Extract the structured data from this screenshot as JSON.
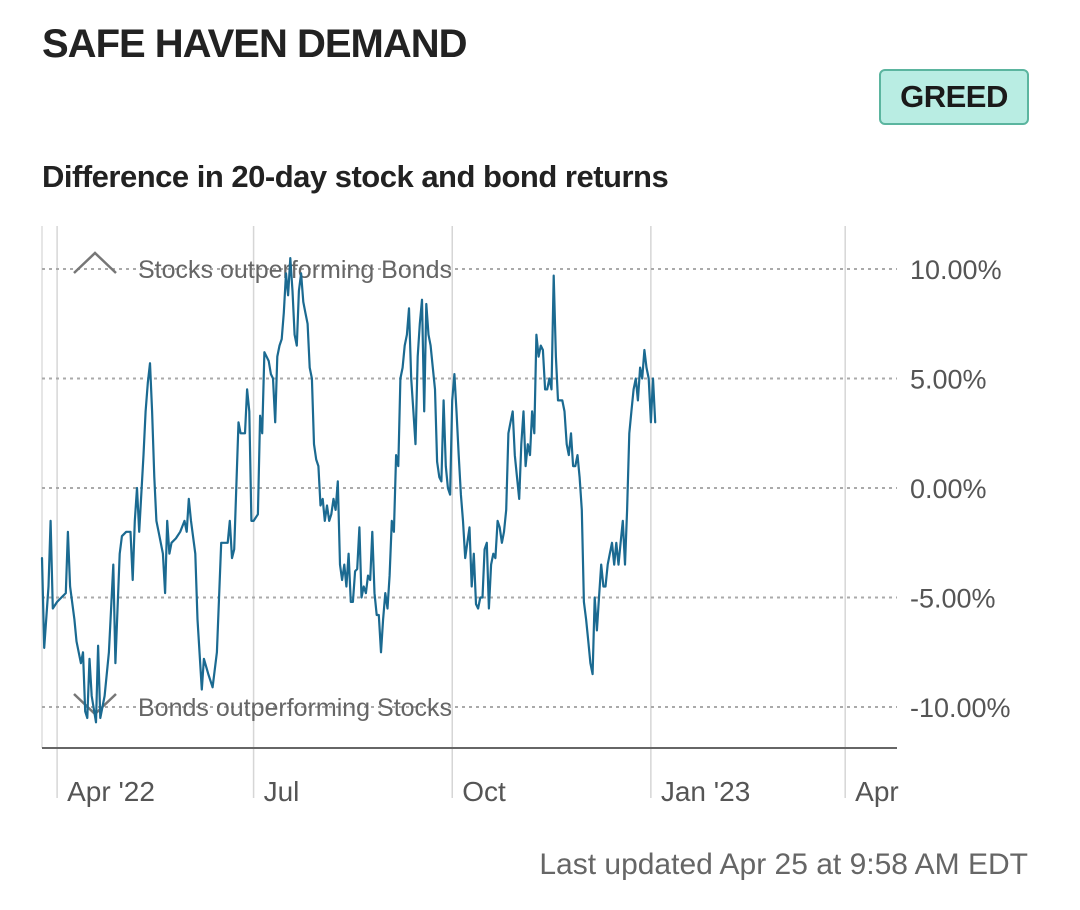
{
  "title": "SAFE HAVEN DEMAND",
  "badge": {
    "label": "GREED",
    "bg_color": "#b9ede3",
    "border_color": "#5bb59f"
  },
  "subtitle": "Difference in 20-day stock and bond returns",
  "footer": "Last updated Apr 25 at 9:58 AM EDT",
  "chart_data": {
    "type": "line",
    "title": "Difference in 20-day stock and bond returns",
    "y_unit": "%",
    "ylim": [
      -12,
      12
    ],
    "x_range": [
      "2022-03-25",
      "2023-04-25"
    ],
    "y_ticks": [
      {
        "value": 10,
        "label": "10.00%"
      },
      {
        "value": 5,
        "label": "5.00%"
      },
      {
        "value": 0,
        "label": "0.00%"
      },
      {
        "value": -5,
        "label": "-5.00%"
      },
      {
        "value": -10,
        "label": "-10.00%"
      }
    ],
    "x_ticks": [
      {
        "date": "2022-04-01",
        "label": "Apr '22"
      },
      {
        "date": "2022-07-01",
        "label": "Jul"
      },
      {
        "date": "2022-10-01",
        "label": "Oct"
      },
      {
        "date": "2023-01-01",
        "label": "Jan '23"
      },
      {
        "date": "2023-04-01",
        "label": "Apr"
      }
    ],
    "annotations": [
      {
        "text": "Stocks outperforming Bonds",
        "icon": "chevron-up-icon",
        "y": 10
      },
      {
        "text": "Bonds outperforming Stocks",
        "icon": "chevron-down-icon",
        "y": -10
      }
    ],
    "grid": {
      "horizontal": true,
      "vertical": true
    },
    "line_color": "#1b6a91",
    "series": [
      {
        "points": [
          [
            "2022-03-25",
            -3.2
          ],
          [
            "2022-03-26",
            -7.3
          ],
          [
            "2022-03-28",
            -4.5
          ],
          [
            "2022-03-29",
            -1.5
          ],
          [
            "2022-03-30",
            -5.5
          ],
          [
            "2022-04-01",
            -5.2
          ],
          [
            "2022-04-03",
            -5.0
          ],
          [
            "2022-04-05",
            -4.8
          ],
          [
            "2022-04-06",
            -2.0
          ],
          [
            "2022-04-07",
            -4.5
          ],
          [
            "2022-04-09",
            -6.0
          ],
          [
            "2022-04-10",
            -7.0
          ],
          [
            "2022-04-12",
            -8.0
          ],
          [
            "2022-04-13",
            -7.5
          ],
          [
            "2022-04-14",
            -10.2
          ],
          [
            "2022-04-15",
            -10.5
          ],
          [
            "2022-04-16",
            -7.8
          ],
          [
            "2022-04-17",
            -9.5
          ],
          [
            "2022-04-19",
            -10.7
          ],
          [
            "2022-04-20",
            -7.2
          ],
          [
            "2022-04-21",
            -10.5
          ],
          [
            "2022-04-23",
            -9.5
          ],
          [
            "2022-04-25",
            -7.5
          ],
          [
            "2022-04-26",
            -5.5
          ],
          [
            "2022-04-27",
            -3.5
          ],
          [
            "2022-04-28",
            -8.0
          ],
          [
            "2022-04-30",
            -3.0
          ],
          [
            "2022-05-01",
            -2.2
          ],
          [
            "2022-05-03",
            -2.0
          ],
          [
            "2022-05-05",
            -2.0
          ],
          [
            "2022-05-06",
            -4.2
          ],
          [
            "2022-05-07",
            -1.5
          ],
          [
            "2022-05-08",
            0.0
          ],
          [
            "2022-05-09",
            -2.0
          ],
          [
            "2022-05-11",
            1.5
          ],
          [
            "2022-05-12",
            3.5
          ],
          [
            "2022-05-13",
            4.8
          ],
          [
            "2022-05-14",
            5.7
          ],
          [
            "2022-05-15",
            3.5
          ],
          [
            "2022-05-16",
            0.5
          ],
          [
            "2022-05-17",
            -1.5
          ],
          [
            "2022-05-18",
            -2.0
          ],
          [
            "2022-05-20",
            -3.0
          ],
          [
            "2022-05-21",
            -4.8
          ],
          [
            "2022-05-22",
            -1.5
          ],
          [
            "2022-05-23",
            -3.0
          ],
          [
            "2022-05-24",
            -2.5
          ],
          [
            "2022-05-26",
            -2.3
          ],
          [
            "2022-05-28",
            -2.0
          ],
          [
            "2022-05-30",
            -1.5
          ],
          [
            "2022-05-31",
            -2.0
          ],
          [
            "2022-06-01",
            -0.5
          ],
          [
            "2022-06-02",
            -1.5
          ],
          [
            "2022-06-04",
            -3.0
          ],
          [
            "2022-06-05",
            -6.0
          ],
          [
            "2022-06-07",
            -9.2
          ],
          [
            "2022-06-08",
            -7.8
          ],
          [
            "2022-06-10",
            -8.5
          ],
          [
            "2022-06-12",
            -9.1
          ],
          [
            "2022-06-14",
            -7.5
          ],
          [
            "2022-06-16",
            -2.5
          ],
          [
            "2022-06-17",
            -2.5
          ],
          [
            "2022-06-18",
            -2.5
          ],
          [
            "2022-06-19",
            -2.5
          ],
          [
            "2022-06-20",
            -1.5
          ],
          [
            "2022-06-21",
            -3.2
          ],
          [
            "2022-06-22",
            -2.8
          ],
          [
            "2022-06-24",
            3.0
          ],
          [
            "2022-06-25",
            2.5
          ],
          [
            "2022-06-27",
            2.5
          ],
          [
            "2022-06-28",
            4.5
          ],
          [
            "2022-06-29",
            3.5
          ],
          [
            "2022-06-30",
            -1.5
          ],
          [
            "2022-07-01",
            -1.5
          ],
          [
            "2022-07-03",
            -1.2
          ],
          [
            "2022-07-04",
            3.3
          ],
          [
            "2022-07-05",
            2.5
          ],
          [
            "2022-07-06",
            6.2
          ],
          [
            "2022-07-08",
            5.8
          ],
          [
            "2022-07-09",
            5.2
          ],
          [
            "2022-07-10",
            5.0
          ],
          [
            "2022-07-11",
            3.0
          ],
          [
            "2022-07-12",
            6.0
          ],
          [
            "2022-07-13",
            6.5
          ],
          [
            "2022-07-14",
            6.8
          ],
          [
            "2022-07-15",
            8.0
          ],
          [
            "2022-07-16",
            9.8
          ],
          [
            "2022-07-17",
            8.8
          ],
          [
            "2022-07-18",
            10.5
          ],
          [
            "2022-07-19",
            9.0
          ],
          [
            "2022-07-20",
            7.0
          ],
          [
            "2022-07-21",
            6.5
          ],
          [
            "2022-07-22",
            9.0
          ],
          [
            "2022-07-23",
            9.8
          ],
          [
            "2022-07-24",
            8.5
          ],
          [
            "2022-07-25",
            8.0
          ],
          [
            "2022-07-26",
            7.5
          ],
          [
            "2022-07-27",
            5.5
          ],
          [
            "2022-07-28",
            5.0
          ],
          [
            "2022-07-29",
            2.0
          ],
          [
            "2022-07-30",
            1.3
          ],
          [
            "2022-07-31",
            1.0
          ],
          [
            "2022-08-01",
            -0.8
          ],
          [
            "2022-08-02",
            -0.5
          ],
          [
            "2022-08-03",
            -1.5
          ],
          [
            "2022-08-04",
            -0.8
          ],
          [
            "2022-08-05",
            -1.5
          ],
          [
            "2022-08-06",
            -1.2
          ],
          [
            "2022-08-07",
            -0.5
          ],
          [
            "2022-08-08",
            -1.0
          ],
          [
            "2022-08-09",
            0.3
          ],
          [
            "2022-08-10",
            -3.5
          ],
          [
            "2022-08-11",
            -4.2
          ],
          [
            "2022-08-12",
            -3.5
          ],
          [
            "2022-08-13",
            -4.5
          ],
          [
            "2022-08-14",
            -3.0
          ],
          [
            "2022-08-15",
            -5.2
          ],
          [
            "2022-08-16",
            -5.2
          ],
          [
            "2022-08-17",
            -3.8
          ],
          [
            "2022-08-18",
            -3.7
          ],
          [
            "2022-08-19",
            -1.8
          ],
          [
            "2022-08-20",
            -5.0
          ],
          [
            "2022-08-21",
            -4.5
          ],
          [
            "2022-08-22",
            -4.8
          ],
          [
            "2022-08-23",
            -4.0
          ],
          [
            "2022-08-24",
            -4.2
          ],
          [
            "2022-08-25",
            -2.0
          ],
          [
            "2022-08-26",
            -4.8
          ],
          [
            "2022-08-27",
            -5.8
          ],
          [
            "2022-08-28",
            -5.8
          ],
          [
            "2022-08-29",
            -7.5
          ],
          [
            "2022-08-30",
            -6.0
          ],
          [
            "2022-08-31",
            -4.8
          ],
          [
            "2022-09-01",
            -5.5
          ],
          [
            "2022-09-02",
            -4.0
          ],
          [
            "2022-09-03",
            -1.5
          ],
          [
            "2022-09-04",
            -2.0
          ],
          [
            "2022-09-05",
            1.5
          ],
          [
            "2022-09-06",
            1.0
          ],
          [
            "2022-09-07",
            5.0
          ],
          [
            "2022-09-08",
            5.5
          ],
          [
            "2022-09-09",
            6.5
          ],
          [
            "2022-09-10",
            7.0
          ],
          [
            "2022-09-11",
            8.2
          ],
          [
            "2022-09-12",
            5.0
          ],
          [
            "2022-09-13",
            3.5
          ],
          [
            "2022-09-14",
            2.0
          ],
          [
            "2022-09-15",
            6.0
          ],
          [
            "2022-09-16",
            7.5
          ],
          [
            "2022-09-17",
            8.6
          ],
          [
            "2022-09-18",
            3.5
          ],
          [
            "2022-09-19",
            8.4
          ],
          [
            "2022-09-20",
            7.0
          ],
          [
            "2022-09-21",
            6.5
          ],
          [
            "2022-09-22",
            5.5
          ],
          [
            "2022-09-23",
            4.5
          ],
          [
            "2022-09-24",
            1.2
          ],
          [
            "2022-09-25",
            0.5
          ],
          [
            "2022-09-26",
            0.3
          ],
          [
            "2022-09-27",
            4.0
          ],
          [
            "2022-09-28",
            1.0
          ],
          [
            "2022-09-29",
            0.0
          ],
          [
            "2022-09-30",
            -0.3
          ],
          [
            "2022-10-01",
            4.0
          ],
          [
            "2022-10-02",
            5.2
          ],
          [
            "2022-10-03",
            3.5
          ],
          [
            "2022-10-04",
            1.5
          ],
          [
            "2022-10-05",
            -0.3
          ],
          [
            "2022-10-06",
            -1.5
          ],
          [
            "2022-10-07",
            -3.2
          ],
          [
            "2022-10-08",
            -2.5
          ],
          [
            "2022-10-09",
            -1.8
          ],
          [
            "2022-10-10",
            -4.5
          ],
          [
            "2022-10-11",
            -3.0
          ],
          [
            "2022-10-12",
            -5.3
          ],
          [
            "2022-10-13",
            -5.5
          ],
          [
            "2022-10-14",
            -5.0
          ],
          [
            "2022-10-15",
            -5.0
          ],
          [
            "2022-10-16",
            -2.8
          ],
          [
            "2022-10-17",
            -2.5
          ],
          [
            "2022-10-18",
            -5.5
          ],
          [
            "2022-10-19",
            -3.5
          ],
          [
            "2022-10-20",
            -3.0
          ],
          [
            "2022-10-21",
            -3.2
          ],
          [
            "2022-10-22",
            -1.5
          ],
          [
            "2022-10-23",
            -1.8
          ],
          [
            "2022-10-24",
            -2.5
          ],
          [
            "2022-10-25",
            -2.0
          ],
          [
            "2022-10-26",
            -1.0
          ],
          [
            "2022-10-27",
            2.5
          ],
          [
            "2022-10-28",
            3.0
          ],
          [
            "2022-10-29",
            3.5
          ],
          [
            "2022-10-30",
            1.5
          ],
          [
            "2022-10-31",
            0.5
          ],
          [
            "2022-11-01",
            -0.5
          ],
          [
            "2022-11-02",
            2.0
          ],
          [
            "2022-11-03",
            3.5
          ],
          [
            "2022-11-04",
            1.0
          ],
          [
            "2022-11-05",
            2.0
          ],
          [
            "2022-11-06",
            1.5
          ],
          [
            "2022-11-07",
            3.5
          ],
          [
            "2022-11-08",
            2.5
          ],
          [
            "2022-11-09",
            7.0
          ],
          [
            "2022-11-10",
            6.0
          ],
          [
            "2022-11-11",
            6.5
          ],
          [
            "2022-11-12",
            6.3
          ],
          [
            "2022-11-13",
            4.5
          ],
          [
            "2022-11-14",
            4.5
          ],
          [
            "2022-11-15",
            5.0
          ],
          [
            "2022-11-16",
            4.5
          ],
          [
            "2022-11-17",
            9.7
          ],
          [
            "2022-11-18",
            6.0
          ],
          [
            "2022-11-19",
            4.0
          ],
          [
            "2022-11-20",
            4.0
          ],
          [
            "2022-11-21",
            4.0
          ],
          [
            "2022-11-22",
            3.5
          ],
          [
            "2022-11-23",
            2.0
          ],
          [
            "2022-11-24",
            1.5
          ],
          [
            "2022-11-25",
            2.5
          ],
          [
            "2022-11-26",
            1.0
          ],
          [
            "2022-11-27",
            1.0
          ],
          [
            "2022-11-28",
            1.5
          ],
          [
            "2022-11-29",
            0.5
          ],
          [
            "2022-11-30",
            -1.0
          ],
          [
            "2022-12-01",
            -5.2
          ],
          [
            "2022-12-02",
            -6.0
          ],
          [
            "2022-12-03",
            -7.0
          ],
          [
            "2022-12-04",
            -8.0
          ],
          [
            "2022-12-05",
            -8.5
          ],
          [
            "2022-12-06",
            -5.0
          ],
          [
            "2022-12-07",
            -6.5
          ],
          [
            "2022-12-08",
            -5.0
          ],
          [
            "2022-12-09",
            -3.5
          ],
          [
            "2022-12-10",
            -4.5
          ],
          [
            "2022-12-11",
            -4.5
          ],
          [
            "2022-12-12",
            -3.5
          ],
          [
            "2022-12-13",
            -3.0
          ],
          [
            "2022-12-14",
            -2.5
          ],
          [
            "2022-12-15",
            -3.5
          ],
          [
            "2022-12-16",
            -2.5
          ],
          [
            "2022-12-17",
            -3.5
          ],
          [
            "2022-12-18",
            -2.5
          ],
          [
            "2022-12-19",
            -1.5
          ],
          [
            "2022-12-20",
            -3.5
          ],
          [
            "2022-12-21",
            -1.0
          ],
          [
            "2022-12-22",
            2.5
          ],
          [
            "2022-12-23",
            3.5
          ],
          [
            "2022-12-24",
            4.5
          ],
          [
            "2022-12-25",
            5.0
          ],
          [
            "2022-12-26",
            4.0
          ],
          [
            "2022-12-27",
            5.5
          ],
          [
            "2022-12-28",
            5.0
          ],
          [
            "2022-12-29",
            6.3
          ],
          [
            "2022-12-30",
            5.5
          ],
          [
            "2022-12-31",
            5.0
          ],
          [
            "2023-01-01",
            3.0
          ],
          [
            "2023-01-02",
            5.0
          ],
          [
            "2023-01-03",
            3.0
          ]
        ]
      }
    ]
  }
}
